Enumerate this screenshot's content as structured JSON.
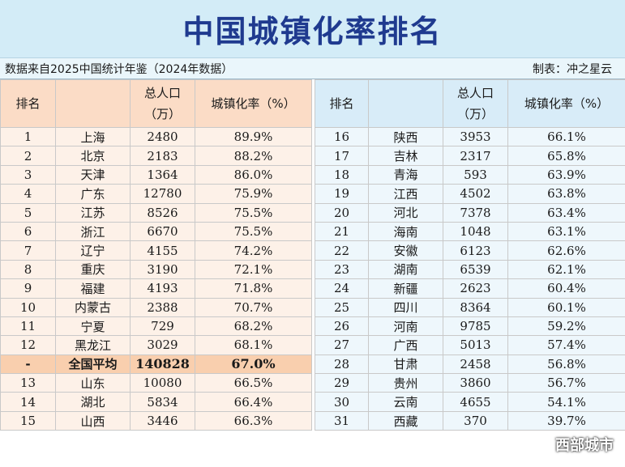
{
  "title": "中国城镇化率排名",
  "source_note": "数据来自2025中国统计年鉴（2024年数据）",
  "author_note": "制表：冲之星云",
  "headers": {
    "rank": "排名",
    "population_line1": "总人口",
    "population_line2": "（万）",
    "rate": "城镇化率（%）"
  },
  "rows_left": [
    {
      "rank": "1",
      "name": "上海",
      "pop": "2480",
      "rate": "89.9%"
    },
    {
      "rank": "2",
      "name": "北京",
      "pop": "2183",
      "rate": "88.2%"
    },
    {
      "rank": "3",
      "name": "天津",
      "pop": "1364",
      "rate": "86.0%"
    },
    {
      "rank": "4",
      "name": "广东",
      "pop": "12780",
      "rate": "75.9%"
    },
    {
      "rank": "5",
      "name": "江苏",
      "pop": "8526",
      "rate": "75.5%"
    },
    {
      "rank": "6",
      "name": "浙江",
      "pop": "6670",
      "rate": "75.5%"
    },
    {
      "rank": "7",
      "name": "辽宁",
      "pop": "4155",
      "rate": "74.2%"
    },
    {
      "rank": "8",
      "name": "重庆",
      "pop": "3190",
      "rate": "72.1%"
    },
    {
      "rank": "9",
      "name": "福建",
      "pop": "4193",
      "rate": "71.8%"
    },
    {
      "rank": "10",
      "name": "内蒙古",
      "pop": "2388",
      "rate": "70.7%"
    },
    {
      "rank": "11",
      "name": "宁夏",
      "pop": "729",
      "rate": "68.2%"
    },
    {
      "rank": "12",
      "name": "黑龙江",
      "pop": "3029",
      "rate": "68.1%"
    },
    {
      "rank": "-",
      "name": "全国平均",
      "pop": "140828",
      "rate": "67.0%"
    },
    {
      "rank": "13",
      "name": "山东",
      "pop": "10080",
      "rate": "66.5%"
    },
    {
      "rank": "14",
      "name": "湖北",
      "pop": "5834",
      "rate": "66.4%"
    },
    {
      "rank": "15",
      "name": "山西",
      "pop": "3446",
      "rate": "66.3%"
    }
  ],
  "rows_right": [
    {
      "rank": "16",
      "name": "陕西",
      "pop": "3953",
      "rate": "66.1%"
    },
    {
      "rank": "17",
      "name": "吉林",
      "pop": "2317",
      "rate": "65.8%"
    },
    {
      "rank": "18",
      "name": "青海",
      "pop": "593",
      "rate": "63.9%"
    },
    {
      "rank": "19",
      "name": "江西",
      "pop": "4502",
      "rate": "63.8%"
    },
    {
      "rank": "20",
      "name": "河北",
      "pop": "7378",
      "rate": "63.4%"
    },
    {
      "rank": "21",
      "name": "海南",
      "pop": "1048",
      "rate": "63.1%"
    },
    {
      "rank": "22",
      "name": "安徽",
      "pop": "6123",
      "rate": "62.6%"
    },
    {
      "rank": "23",
      "name": "湖南",
      "pop": "6539",
      "rate": "62.1%"
    },
    {
      "rank": "24",
      "name": "新疆",
      "pop": "2623",
      "rate": "60.4%"
    },
    {
      "rank": "25",
      "name": "四川",
      "pop": "8364",
      "rate": "60.1%"
    },
    {
      "rank": "26",
      "name": "河南",
      "pop": "9785",
      "rate": "59.2%"
    },
    {
      "rank": "27",
      "name": "广西",
      "pop": "5013",
      "rate": "57.4%"
    },
    {
      "rank": "28",
      "name": "甘肃",
      "pop": "2458",
      "rate": "56.8%"
    },
    {
      "rank": "29",
      "name": "贵州",
      "pop": "3860",
      "rate": "56.7%"
    },
    {
      "rank": "30",
      "name": "云南",
      "pop": "4655",
      "rate": "54.1%"
    },
    {
      "rank": "31",
      "name": "西藏",
      "pop": "370",
      "rate": "39.7%"
    }
  ],
  "watermark": "西部城市",
  "colors": {
    "title_text": "#1f3a8f",
    "title_bg": "#d3ecf7",
    "left_header_bg": "#fbdcc6",
    "left_cell_bg": "#fdf1e8",
    "highlight_bg": "#f9cfae",
    "right_header_bg": "#d8ecf8",
    "right_cell_bg": "#eef7fc"
  }
}
